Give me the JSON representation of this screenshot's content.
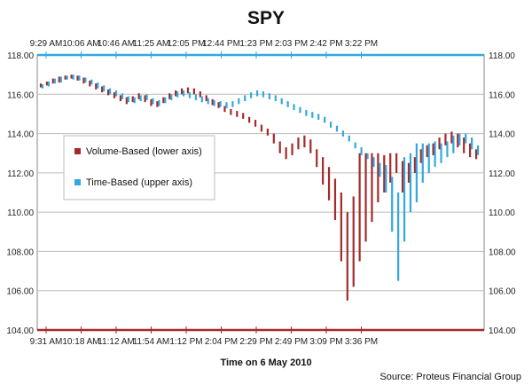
{
  "chart_data": {
    "type": "bar",
    "title": "SPY",
    "xlabel": "Time on 6 May 2010",
    "source": "Source: Proteus Financial Group",
    "ylim": [
      104,
      118
    ],
    "y_ticks": [
      "104.00",
      "106.00",
      "108.00",
      "110.00",
      "112.00",
      "114.00",
      "116.00",
      "118.00"
    ],
    "lower_axis_ticks": [
      "9:31 AM",
      "10:18 AM",
      "11:12 AM",
      "11:54 AM",
      "1:12 PM",
      "2:04 PM",
      "2:29 PM",
      "2:49 PM",
      "3:09 PM",
      "3:36 PM"
    ],
    "upper_axis_ticks": [
      "9:29 AM",
      "10:06 AM",
      "10:46 AM",
      "11:25 AM",
      "12:05 PM",
      "12:44 PM",
      "1:23 PM",
      "2:03 PM",
      "2:42 PM",
      "3:22 PM"
    ],
    "legend_placement": "middle-left",
    "grid": true,
    "series": [
      {
        "name": "Volume-Based (lower axis)",
        "color": "#a52a2a",
        "axis": "lower",
        "points": [
          [
            0.0,
            116.35,
            116.55
          ],
          [
            0.014,
            116.45,
            116.65
          ],
          [
            0.028,
            116.55,
            116.8
          ],
          [
            0.042,
            116.6,
            116.9
          ],
          [
            0.056,
            116.75,
            116.95
          ],
          [
            0.07,
            116.8,
            117.0
          ],
          [
            0.084,
            116.7,
            116.95
          ],
          [
            0.098,
            116.55,
            116.85
          ],
          [
            0.112,
            116.4,
            116.7
          ],
          [
            0.126,
            116.25,
            116.55
          ],
          [
            0.14,
            116.1,
            116.4
          ],
          [
            0.154,
            115.95,
            116.25
          ],
          [
            0.168,
            115.8,
            116.1
          ],
          [
            0.182,
            115.65,
            115.95
          ],
          [
            0.196,
            115.5,
            115.85
          ],
          [
            0.21,
            115.6,
            115.9
          ],
          [
            0.224,
            115.75,
            116.05
          ],
          [
            0.238,
            115.6,
            115.95
          ],
          [
            0.252,
            115.4,
            115.75
          ],
          [
            0.266,
            115.35,
            115.65
          ],
          [
            0.28,
            115.55,
            115.85
          ],
          [
            0.294,
            115.75,
            116.05
          ],
          [
            0.308,
            115.9,
            116.2
          ],
          [
            0.322,
            116.0,
            116.3
          ],
          [
            0.336,
            116.05,
            116.35
          ],
          [
            0.35,
            116.0,
            116.3
          ],
          [
            0.364,
            115.85,
            116.15
          ],
          [
            0.378,
            115.65,
            115.95
          ],
          [
            0.392,
            115.45,
            115.75
          ],
          [
            0.406,
            115.3,
            115.6
          ],
          [
            0.42,
            115.1,
            115.4
          ],
          [
            0.434,
            114.95,
            115.25
          ],
          [
            0.448,
            114.85,
            115.15
          ],
          [
            0.462,
            114.75,
            115.05
          ],
          [
            0.476,
            114.55,
            114.85
          ],
          [
            0.49,
            114.35,
            114.7
          ],
          [
            0.504,
            114.1,
            114.45
          ],
          [
            0.518,
            113.9,
            114.25
          ],
          [
            0.532,
            113.5,
            114.0
          ],
          [
            0.546,
            113.0,
            113.6
          ],
          [
            0.56,
            112.7,
            113.3
          ],
          [
            0.574,
            112.9,
            113.5
          ],
          [
            0.588,
            113.2,
            113.8
          ],
          [
            0.602,
            113.3,
            113.9
          ],
          [
            0.616,
            113.0,
            113.7
          ],
          [
            0.63,
            112.3,
            113.2
          ],
          [
            0.644,
            111.4,
            112.8
          ],
          [
            0.658,
            110.6,
            112.3
          ],
          [
            0.672,
            109.6,
            111.7
          ],
          [
            0.686,
            107.5,
            111.0
          ],
          [
            0.7,
            105.5,
            110.0
          ],
          [
            0.714,
            106.2,
            110.8
          ],
          [
            0.728,
            107.5,
            113.0
          ],
          [
            0.742,
            108.5,
            113.0
          ],
          [
            0.756,
            109.5,
            113.0
          ],
          [
            0.77,
            110.5,
            113.0
          ],
          [
            0.784,
            111.0,
            112.9
          ],
          [
            0.798,
            111.5,
            113.0
          ],
          [
            0.812,
            112.0,
            113.0
          ],
          [
            0.826,
            111.0,
            112.6
          ],
          [
            0.84,
            111.5,
            112.5
          ],
          [
            0.854,
            112.0,
            112.8
          ],
          [
            0.868,
            112.5,
            113.2
          ],
          [
            0.882,
            112.8,
            113.4
          ],
          [
            0.896,
            112.9,
            113.5
          ],
          [
            0.91,
            113.2,
            113.8
          ],
          [
            0.924,
            113.4,
            114.0
          ],
          [
            0.938,
            113.5,
            114.1
          ],
          [
            0.952,
            113.3,
            114.0
          ],
          [
            0.966,
            113.0,
            113.8
          ],
          [
            0.98,
            112.8,
            113.5
          ],
          [
            0.994,
            112.7,
            113.2
          ]
        ]
      },
      {
        "name": "Time-Based (upper axis)",
        "color": "#31a9de",
        "axis": "upper",
        "points": [
          [
            0.0,
            116.3,
            116.5
          ],
          [
            0.014,
            116.4,
            116.65
          ],
          [
            0.028,
            116.55,
            116.8
          ],
          [
            0.042,
            116.6,
            116.9
          ],
          [
            0.056,
            116.75,
            116.95
          ],
          [
            0.07,
            116.75,
            117.0
          ],
          [
            0.084,
            116.7,
            116.95
          ],
          [
            0.098,
            116.6,
            116.85
          ],
          [
            0.112,
            116.5,
            116.75
          ],
          [
            0.126,
            116.3,
            116.6
          ],
          [
            0.14,
            116.15,
            116.45
          ],
          [
            0.154,
            116.0,
            116.3
          ],
          [
            0.168,
            115.9,
            116.2
          ],
          [
            0.182,
            115.75,
            116.05
          ],
          [
            0.196,
            115.6,
            115.9
          ],
          [
            0.21,
            115.55,
            115.85
          ],
          [
            0.224,
            115.65,
            115.95
          ],
          [
            0.238,
            115.7,
            116.0
          ],
          [
            0.252,
            115.5,
            115.8
          ],
          [
            0.266,
            115.4,
            115.7
          ],
          [
            0.28,
            115.55,
            115.85
          ],
          [
            0.294,
            115.7,
            116.0
          ],
          [
            0.308,
            115.85,
            116.15
          ],
          [
            0.322,
            115.9,
            116.2
          ],
          [
            0.336,
            115.8,
            116.1
          ],
          [
            0.35,
            115.7,
            116.0
          ],
          [
            0.364,
            115.6,
            115.9
          ],
          [
            0.378,
            115.5,
            115.8
          ],
          [
            0.392,
            115.4,
            115.7
          ],
          [
            0.406,
            115.35,
            115.65
          ],
          [
            0.42,
            115.3,
            115.6
          ],
          [
            0.434,
            115.35,
            115.65
          ],
          [
            0.448,
            115.5,
            115.8
          ],
          [
            0.462,
            115.65,
            115.95
          ],
          [
            0.476,
            115.8,
            116.1
          ],
          [
            0.49,
            115.9,
            116.2
          ],
          [
            0.504,
            115.85,
            116.15
          ],
          [
            0.518,
            115.75,
            116.05
          ],
          [
            0.532,
            115.65,
            115.95
          ],
          [
            0.546,
            115.5,
            115.8
          ],
          [
            0.56,
            115.35,
            115.65
          ],
          [
            0.574,
            115.2,
            115.5
          ],
          [
            0.588,
            115.05,
            115.35
          ],
          [
            0.602,
            114.9,
            115.2
          ],
          [
            0.616,
            114.8,
            115.1
          ],
          [
            0.63,
            114.7,
            115.0
          ],
          [
            0.644,
            114.55,
            114.85
          ],
          [
            0.658,
            114.3,
            114.6
          ],
          [
            0.672,
            114.1,
            114.4
          ],
          [
            0.686,
            113.85,
            114.15
          ],
          [
            0.7,
            113.6,
            113.9
          ],
          [
            0.714,
            113.25,
            113.55
          ],
          [
            0.728,
            112.9,
            113.3
          ],
          [
            0.742,
            112.7,
            113.0
          ],
          [
            0.756,
            112.3,
            112.8
          ],
          [
            0.77,
            111.8,
            112.5
          ],
          [
            0.784,
            111.0,
            112.4
          ],
          [
            0.798,
            109.0,
            111.8
          ],
          [
            0.812,
            106.5,
            111.0
          ],
          [
            0.826,
            108.5,
            112.8
          ],
          [
            0.84,
            110.0,
            113.0
          ],
          [
            0.854,
            110.5,
            113.5
          ],
          [
            0.868,
            111.5,
            113.5
          ],
          [
            0.882,
            112.0,
            113.5
          ],
          [
            0.896,
            112.3,
            113.6
          ],
          [
            0.91,
            112.5,
            113.5
          ],
          [
            0.924,
            112.8,
            113.6
          ],
          [
            0.938,
            113.0,
            113.9
          ],
          [
            0.952,
            113.4,
            114.0
          ],
          [
            0.966,
            113.5,
            114.0
          ],
          [
            0.98,
            113.2,
            113.8
          ],
          [
            0.994,
            112.9,
            113.4
          ]
        ]
      }
    ]
  }
}
